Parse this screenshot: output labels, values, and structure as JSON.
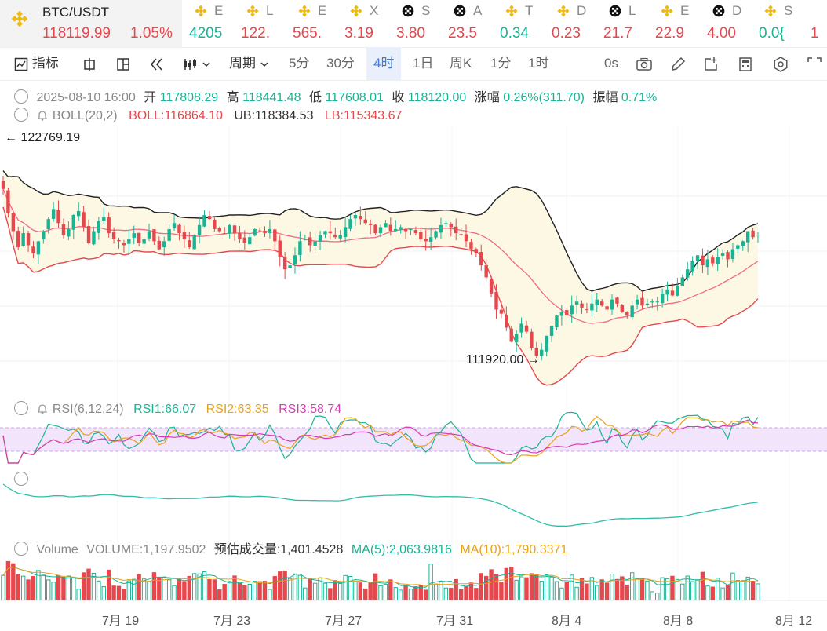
{
  "pair": {
    "name": "BTC/USDT",
    "price": "118119.99",
    "change": "1.05%"
  },
  "tickers": [
    {
      "sym": "E",
      "val": "4205",
      "dir": "up",
      "icon": "binance-icon"
    },
    {
      "sym": "L",
      "val": "122.",
      "dir": "dn",
      "icon": "binance-icon"
    },
    {
      "sym": "E",
      "val": "565.",
      "dir": "dn",
      "icon": "binance-icon"
    },
    {
      "sym": "X",
      "val": "3.19",
      "dir": "dn",
      "icon": "binance-icon"
    },
    {
      "sym": "S",
      "val": "3.80",
      "dir": "dn",
      "icon": "okx-icon"
    },
    {
      "sym": "A",
      "val": "23.5",
      "dir": "dn",
      "icon": "okx-icon"
    },
    {
      "sym": "T",
      "val": "0.34",
      "dir": "up",
      "icon": "binance-icon"
    },
    {
      "sym": "D",
      "val": "0.23",
      "dir": "dn",
      "icon": "binance-icon"
    },
    {
      "sym": "L",
      "val": "21.7",
      "dir": "dn",
      "icon": "okx-icon"
    },
    {
      "sym": "E",
      "val": "22.9",
      "dir": "dn",
      "icon": "binance-icon"
    },
    {
      "sym": "D",
      "val": "4.00",
      "dir": "dn",
      "icon": "okx-icon"
    },
    {
      "sym": "S",
      "val": "0.0{",
      "dir": "up",
      "icon": "binance-icon"
    },
    {
      "sym": "",
      "val": "1",
      "dir": "dn",
      "icon": ""
    }
  ],
  "toolbar": {
    "indicator": "指标",
    "period": "周期",
    "intervals": [
      "5分",
      "30分",
      "4时",
      "1日",
      "周K",
      "1分",
      "1时"
    ],
    "selected_interval": "4时",
    "countdown": "0s"
  },
  "ohlc": {
    "datetime": "2025-08-10 16:00",
    "open_label": "开",
    "open": "117808.29",
    "high_label": "高",
    "high": "118441.48",
    "low_label": "低",
    "low": "117608.01",
    "close_label": "收",
    "close": "118120.00",
    "amp_label": "涨幅",
    "amp": "0.26%(311.70)",
    "swing_label": "振幅",
    "swing": "0.71%"
  },
  "boll": {
    "label": "BOLL(20,2)",
    "mid": "BOLL:116864.10",
    "ub": "UB:118384.53",
    "lb": "LB:115343.67"
  },
  "annotations": {
    "high": "122769.19",
    "low": "111920.00"
  },
  "rsi": {
    "label": "RSI(6,12,24)",
    "r1": "RSI1:66.07",
    "r2": "RSI2:63.35",
    "r3": "RSI3:58.74"
  },
  "volume": {
    "label": "Volume",
    "vol": "VOLUME:1,197.9502",
    "est": "预估成交量:1,401.4528",
    "ma5": "MA(5):2,063.9816",
    "ma10": "MA(10):1,790.3371"
  },
  "x_axis": [
    "7月 19",
    "7月 23",
    "7月 27",
    "7月 31",
    "8月 4",
    "8月 8",
    "8月 12"
  ],
  "colors": {
    "up": "#1ab394",
    "down": "#e5484d",
    "boll_mid": "#f06a8a",
    "band_fill": "#fdf8e4",
    "rsi_fill": "#f1e4fb"
  },
  "chart_data": {
    "type": "candlestick",
    "series": "BTC/USDT 4h",
    "closes": [
      120400,
      119200,
      118300,
      117500,
      118200,
      117600,
      117200,
      117800,
      118300,
      118900,
      119400,
      118700,
      118100,
      118400,
      119100,
      119300,
      118500,
      117700,
      118300,
      118800,
      119000,
      118200,
      117900,
      117800,
      117600,
      117900,
      118200,
      117700,
      117900,
      118300,
      117800,
      117400,
      117800,
      118400,
      118700,
      118200,
      117900,
      117500,
      118100,
      118600,
      119100,
      118900,
      118400,
      118300,
      118200,
      118600,
      118200,
      117900,
      117700,
      118000,
      118400,
      118300,
      118200,
      118400,
      117800,
      117000,
      116400,
      116600,
      117100,
      117800,
      117900,
      117600,
      117800,
      118100,
      118300,
      118200,
      118000,
      118100,
      118500,
      118900,
      119100,
      118900,
      118700,
      118600,
      118200,
      118500,
      118700,
      118300,
      118400,
      118500,
      118300,
      118400,
      118200,
      117900,
      117800,
      118000,
      118300,
      118600,
      118700,
      118500,
      118200,
      118100,
      117800,
      117400,
      117200,
      116600,
      116000,
      115200,
      114400,
      114200,
      113500,
      112800,
      113200,
      113700,
      113300,
      112500,
      112100,
      112400,
      113100,
      113600,
      114100,
      114300,
      114100,
      114600,
      114800,
      114500,
      114400,
      114700,
      114900,
      114600,
      114400,
      114900,
      114700,
      114300,
      114100,
      114600,
      114900,
      114600,
      114700,
      114800,
      114800,
      115200,
      115400,
      115100,
      115600,
      116000,
      116400,
      116800,
      117100,
      116600,
      116900,
      116700,
      117000,
      117200,
      116900,
      117400,
      117600,
      117800,
      118300,
      118000,
      118120
    ],
    "boll_ub": "118384.53",
    "boll_mid": "116864.10",
    "boll_lb": "115343.67",
    "high_marker": 122769.19,
    "low_marker": 111920.0
  }
}
